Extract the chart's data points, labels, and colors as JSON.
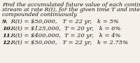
{
  "title_lines": [
    "Find the accumulated future value of each continuous income",
    "stream at rate R(t), for the given time T and interest rate k,",
    "compounded continuously."
  ],
  "problems": [
    {
      "num": "9.",
      "text": " R(t) = $50,000,   T = 22 yr,   k = 5%"
    },
    {
      "num": "10.",
      "text": " R(t) = $125,000,  T = 20 yr,   k = 6%"
    },
    {
      "num": "11.",
      "text": " R(t) = $400,000,  T = 20 yr,   k = 4%"
    },
    {
      "num": "12.",
      "text": " R(t) = $50,000,   T = 22 yr,   k = 2.75%"
    }
  ],
  "title_fontsize": 5.8,
  "problem_fontsize": 6.0,
  "bg_color": "#f5f0e8",
  "text_color": "#1a1a1a",
  "figsize": [
    2.0,
    0.9
  ],
  "dpi": 100
}
